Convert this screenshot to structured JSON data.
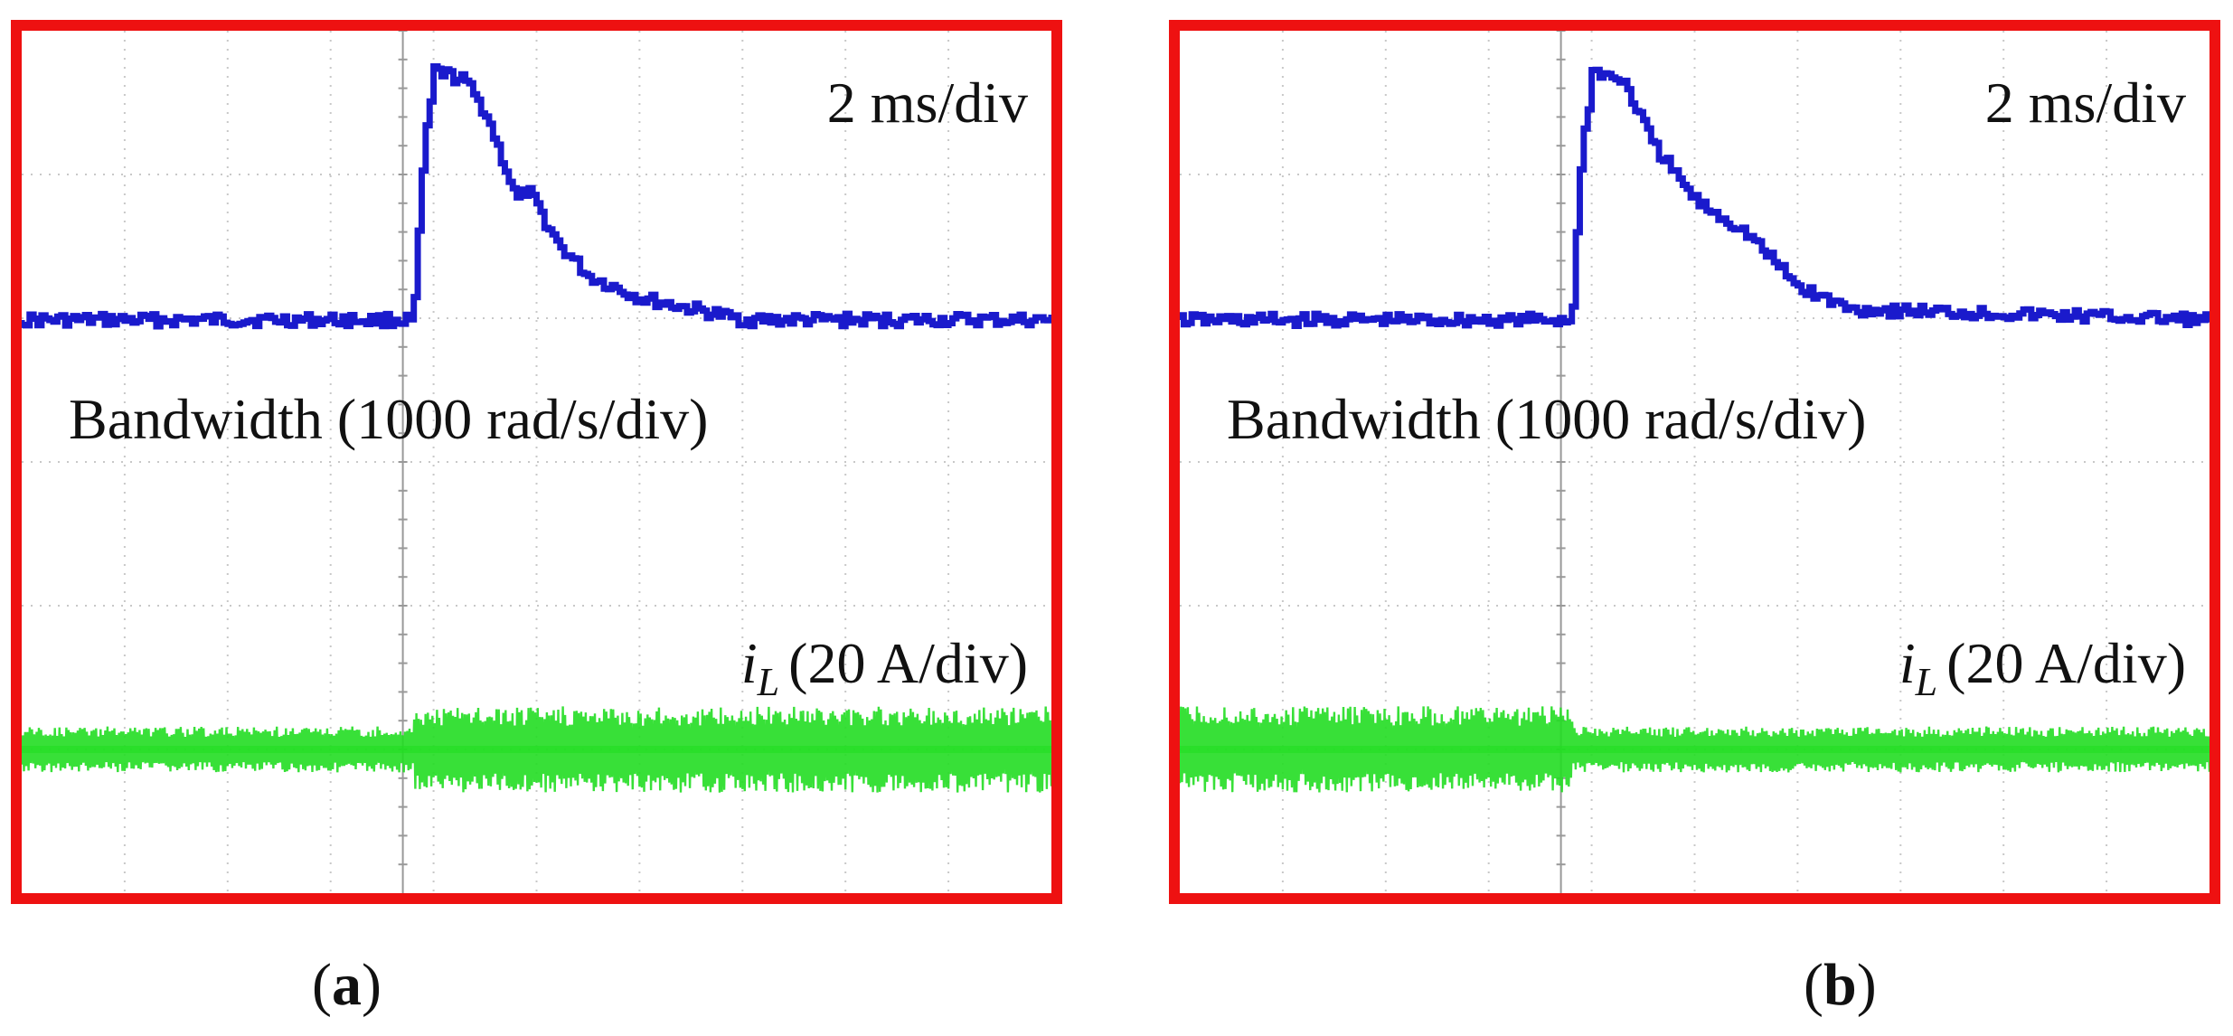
{
  "figure": {
    "colors": {
      "frame": "#ee1111",
      "trace1": "#1a1acc",
      "trace2": "#22dd22",
      "grid": "#c8c8c8"
    },
    "panels": [
      {
        "id": "a",
        "caption_open": "(",
        "caption_letter": "a",
        "caption_close": ")",
        "timebase": "2 ms/div",
        "trace1_label": "Bandwidth (1000 rad/s/div)",
        "trace2_symbol": "i",
        "trace2_sub": "L",
        "trace2_label": "(20 A/div)"
      },
      {
        "id": "b",
        "caption_open": "(",
        "caption_letter": "b",
        "caption_close": ")",
        "timebase": "2 ms/div",
        "trace1_label": "Bandwidth (1000 rad/s/div)",
        "trace2_symbol": "i",
        "trace2_sub": "L",
        "trace2_label": "(20 A/div)"
      }
    ]
  },
  "chart_data": [
    {
      "type": "line",
      "title": "(a)",
      "x_unit": "div",
      "xlim": [
        0,
        10
      ],
      "grid": true,
      "series": [
        {
          "name": "Bandwidth (1000 rad/s/div)",
          "x": [
            0,
            3.8,
            3.82,
            3.9,
            3.95,
            4.0,
            4.3,
            4.5,
            4.8,
            4.9,
            5.2,
            5.5,
            6.0,
            6.5,
            7.0,
            10
          ],
          "y": [
            0,
            0,
            0.4,
            1.6,
            1.9,
            2.3,
            2.2,
            1.9,
            1.1,
            1.2,
            0.7,
            0.4,
            0.2,
            0.1,
            0.0,
            0
          ]
        },
        {
          "name": "iL (20 A/div)",
          "x": [
            0,
            3.8,
            3.82,
            10
          ],
          "amplitude": [
            0.16,
            0.16,
            0.3,
            0.3
          ]
        }
      ]
    },
    {
      "type": "line",
      "title": "(b)",
      "x_unit": "div",
      "xlim": [
        0,
        10
      ],
      "grid": true,
      "series": [
        {
          "name": "Bandwidth (1000 rad/s/div)",
          "x": [
            0,
            3.8,
            3.82,
            3.9,
            3.95,
            4.0,
            4.3,
            4.6,
            5.0,
            5.5,
            5.8,
            6.0,
            6.5,
            10
          ],
          "y": [
            0,
            0,
            0.4,
            1.6,
            1.9,
            2.3,
            2.2,
            1.6,
            1.1,
            0.8,
            0.5,
            0.3,
            0.1,
            0
          ]
        },
        {
          "name": "iL (20 A/div)",
          "x": [
            0,
            3.8,
            3.82,
            10
          ],
          "amplitude": [
            0.3,
            0.3,
            0.16,
            0.16
          ]
        }
      ]
    }
  ]
}
